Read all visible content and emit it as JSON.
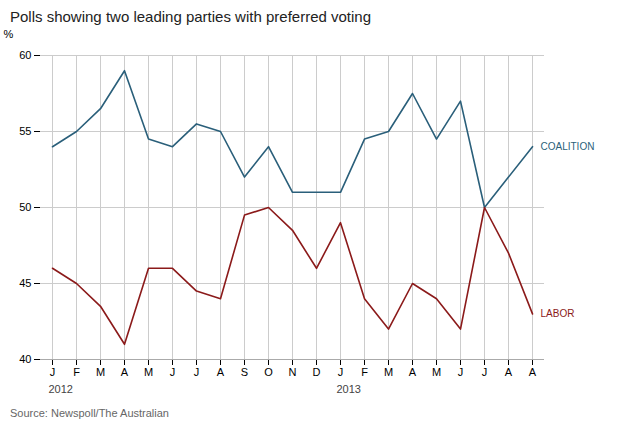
{
  "chart_data": {
    "type": "line",
    "title": "Polls showing two leading parties with preferred voting",
    "ylabel": "%",
    "source": "Source: Newspoll/The Australian",
    "categories": [
      "J",
      "F",
      "M",
      "A",
      "M",
      "J",
      "J",
      "A",
      "S",
      "O",
      "N",
      "D",
      "J",
      "F",
      "M",
      "A",
      "M",
      "J",
      "J",
      "A",
      "A"
    ],
    "series": [
      {
        "name": "COALITION",
        "color": "#2a5f7a",
        "values": [
          54.0,
          55.0,
          56.5,
          59.0,
          54.5,
          54.0,
          55.5,
          55.0,
          52.0,
          54.0,
          51.0,
          51.0,
          51.0,
          54.5,
          55.0,
          57.5,
          54.5,
          57.0,
          50.0,
          52.0,
          54.0
        ]
      },
      {
        "name": "LABOR",
        "color": "#8b1a1a",
        "values": [
          46.0,
          45.0,
          43.5,
          41.0,
          46.0,
          46.0,
          44.5,
          44.0,
          49.5,
          50.0,
          48.5,
          46.0,
          49.0,
          44.0,
          42.0,
          45.0,
          44.0,
          42.0,
          50.0,
          47.0,
          43.0
        ]
      }
    ],
    "year_labels": [
      {
        "index": 0,
        "text": "2012"
      },
      {
        "index": 12,
        "text": "2013"
      }
    ],
    "ylim": [
      40,
      60
    ],
    "yticks": [
      40,
      45,
      50,
      55,
      60
    ],
    "grid": true
  }
}
